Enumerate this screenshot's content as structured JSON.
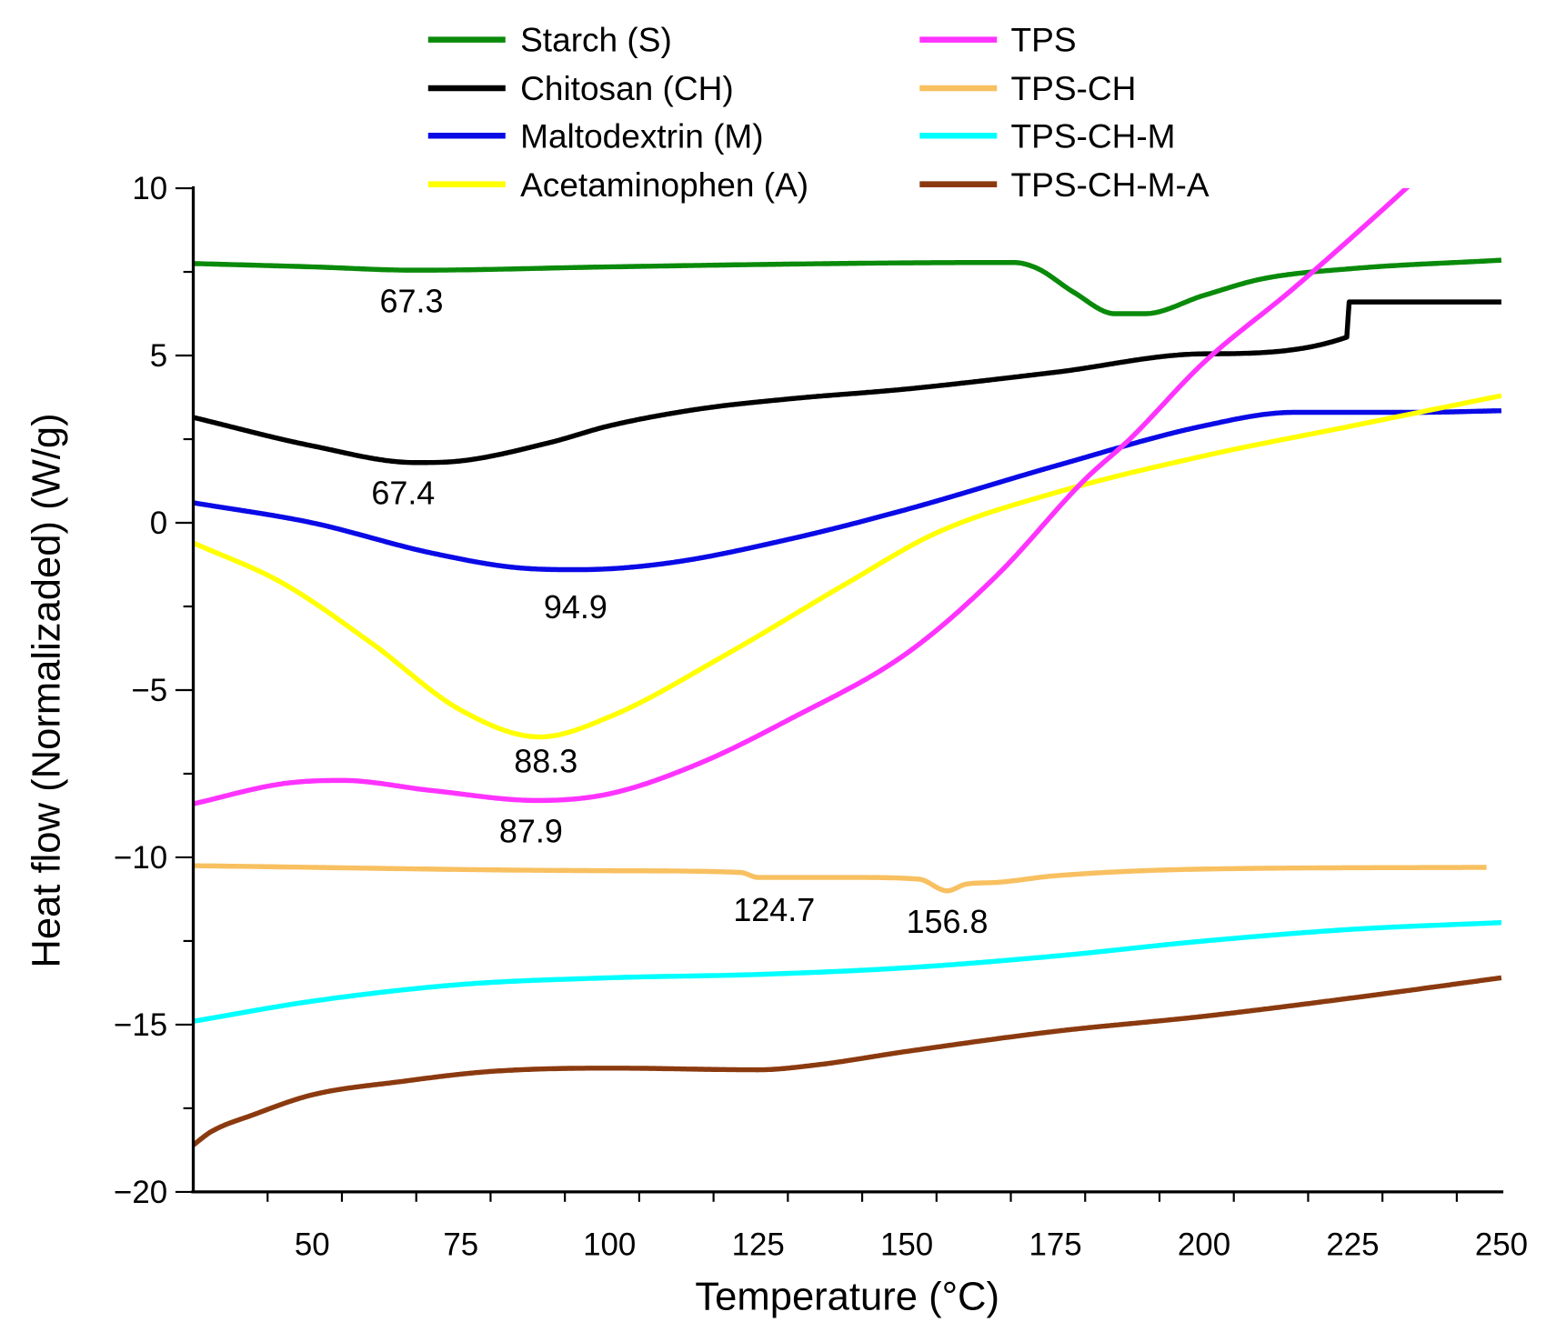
{
  "chart_data": {
    "type": "line",
    "title": "",
    "xlabel": "Temperature (°C)",
    "ylabel": "Heat flow (Normalizaded) (W/g)",
    "xlim": [
      30,
      250
    ],
    "ylim": [
      -20,
      10
    ],
    "xticks": [
      50,
      75,
      100,
      125,
      150,
      175,
      200,
      225,
      250
    ],
    "xtick_labels": [
      "50",
      "75",
      "100",
      "125",
      "150",
      "175",
      "200",
      "225",
      "250"
    ],
    "yticks": [
      10,
      5,
      0,
      -5,
      -10,
      -15,
      -20
    ],
    "ytick_labels": [
      "10",
      "5",
      "0",
      "−5",
      "−10",
      "−15",
      "−20"
    ],
    "x_minor_step": 12.5,
    "y_minor_step": 2.5,
    "grid": false,
    "legend_position": "top",
    "series": [
      {
        "name": "Starch (S)",
        "color": "#0a8a0a",
        "x": [
          30,
          50,
          67.3,
          100,
          125,
          150,
          168,
          172,
          178,
          185,
          190,
          200,
          210,
          225,
          250
        ],
        "y": [
          7.75,
          7.65,
          7.55,
          7.65,
          7.72,
          7.77,
          7.78,
          7.6,
          6.9,
          6.25,
          6.25,
          6.8,
          7.3,
          7.6,
          7.85
        ]
      },
      {
        "name": "Chitosan (CH)",
        "color": "#000000",
        "x": [
          30,
          50,
          67.4,
          75,
          90,
          100,
          115,
          130,
          150,
          175,
          200,
          224,
          224.4,
          250
        ],
        "y": [
          3.15,
          2.3,
          1.8,
          1.85,
          2.4,
          2.9,
          3.4,
          3.7,
          4.0,
          4.5,
          5.05,
          5.55,
          6.6,
          6.6
        ]
      },
      {
        "name": "Maltodextrin (M)",
        "color": "#0a0ae6",
        "x": [
          30,
          50,
          70,
          85,
          94.9,
          110,
          130,
          150,
          175,
          200,
          215,
          235,
          250
        ],
        "y": [
          0.6,
          0.0,
          -0.9,
          -1.35,
          -1.4,
          -1.2,
          -0.5,
          0.4,
          1.7,
          2.9,
          3.3,
          3.3,
          3.35
        ]
      },
      {
        "name": "Acetaminophen (A)",
        "color": "#ffff00",
        "x": [
          30,
          45,
          60,
          75,
          88.3,
          100,
          120,
          140,
          155,
          175,
          200,
          225,
          250
        ],
        "y": [
          -0.6,
          -1.8,
          -3.6,
          -5.6,
          -6.4,
          -5.8,
          -3.9,
          -1.8,
          -0.3,
          0.9,
          2.0,
          2.9,
          3.8
        ]
      },
      {
        "name": "TPS",
        "color": "#ff33ff",
        "x": [
          30,
          45,
          55,
          70,
          87.9,
          100,
          115,
          130,
          150,
          165,
          180,
          187.5,
          200,
          215,
          234,
          240
        ],
        "y": [
          -8.4,
          -7.8,
          -7.7,
          -8.0,
          -8.3,
          -8.1,
          -7.2,
          -5.9,
          -3.9,
          -1.6,
          1.3,
          2.5,
          4.8,
          7.0,
          10,
          11
        ]
      },
      {
        "name": "TPS-CH",
        "color": "#f8c060",
        "x": [
          30,
          100,
          122,
          125,
          140,
          152,
          156.8,
          160,
          165,
          175,
          200,
          247.5
        ],
        "y": [
          -10.25,
          -10.4,
          -10.45,
          -10.6,
          -10.6,
          -10.65,
          -11.0,
          -10.8,
          -10.75,
          -10.55,
          -10.35,
          -10.3
        ]
      },
      {
        "name": "TPS-CH-M",
        "color": "#00ffff",
        "x": [
          30,
          50,
          75,
          100,
          125,
          150,
          175,
          200,
          225,
          250
        ],
        "y": [
          -14.9,
          -14.3,
          -13.8,
          -13.6,
          -13.5,
          -13.3,
          -12.95,
          -12.5,
          -12.15,
          -11.95
        ]
      },
      {
        "name": "TPS-CH-M-A",
        "color": "#8b3a0f",
        "x": [
          30,
          33,
          40,
          50,
          65,
          80,
          100,
          125,
          135,
          150,
          175,
          200,
          225,
          250
        ],
        "y": [
          -18.6,
          -18.2,
          -17.7,
          -17.1,
          -16.7,
          -16.4,
          -16.3,
          -16.35,
          -16.2,
          -15.8,
          -15.2,
          -14.75,
          -14.2,
          -13.6
        ]
      }
    ],
    "annotations": [
      {
        "text": "67.3",
        "x": 66.7,
        "y": 6.65
      },
      {
        "text": "67.4",
        "x": 65.3,
        "y": 0.91
      },
      {
        "text": "94.9",
        "x": 94.3,
        "y": -2.5
      },
      {
        "text": "88.3",
        "x": 89.3,
        "y": -7.1
      },
      {
        "text": "87.9",
        "x": 86.8,
        "y": -9.2
      },
      {
        "text": "124.7",
        "x": 127.7,
        "y": -11.55
      },
      {
        "text": "156.8",
        "x": 156.8,
        "y": -11.9
      }
    ]
  }
}
